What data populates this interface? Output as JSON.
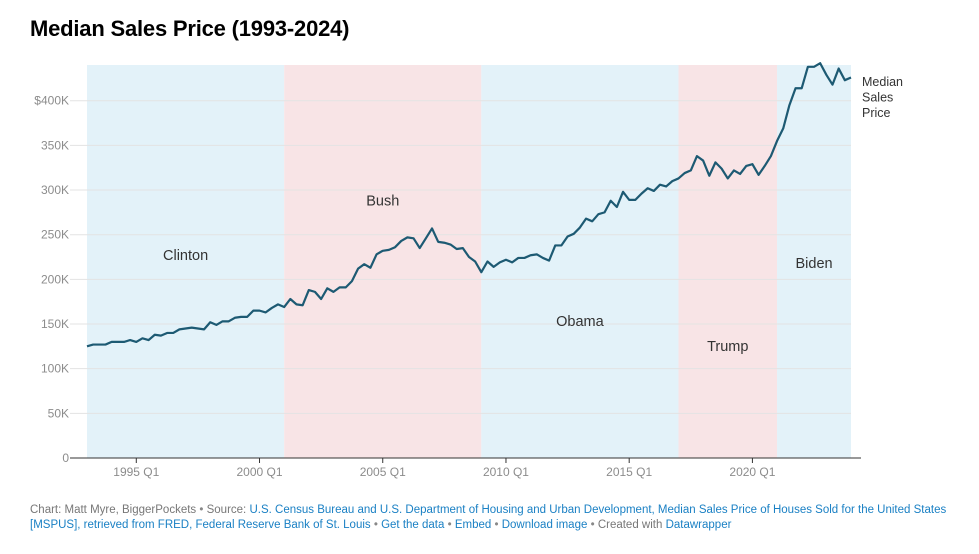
{
  "chart_data": {
    "type": "line",
    "title": "Median Sales Price (1993-2024)",
    "ylim": [
      0,
      440000
    ],
    "yticks": [
      {
        "value": 0,
        "label": "0"
      },
      {
        "value": 50000,
        "label": "50K"
      },
      {
        "value": 100000,
        "label": "100K"
      },
      {
        "value": 150000,
        "label": "150K"
      },
      {
        "value": 200000,
        "label": "200K"
      },
      {
        "value": 250000,
        "label": "250K"
      },
      {
        "value": 300000,
        "label": "300K"
      },
      {
        "value": 350000,
        "label": "350K"
      },
      {
        "value": 400000,
        "label": "$400K"
      }
    ],
    "xlim": [
      1993.0,
      2024.0
    ],
    "xticks": [
      {
        "value": 1995.0,
        "label": "1995 Q1"
      },
      {
        "value": 2000.0,
        "label": "2000 Q1"
      },
      {
        "value": 2005.0,
        "label": "2005 Q1"
      },
      {
        "value": 2010.0,
        "label": "2010 Q1"
      },
      {
        "value": 2015.0,
        "label": "2015 Q1"
      },
      {
        "value": 2020.0,
        "label": "2020 Q1"
      }
    ],
    "grid": true,
    "bands": [
      {
        "label": "Clinton",
        "start": 1993.0,
        "end": 2001.0,
        "color": "#e3f2f9",
        "label_value": 226000
      },
      {
        "label": "Bush",
        "start": 2001.0,
        "end": 2009.0,
        "color": "#f8e4e6",
        "label_value": 287000
      },
      {
        "label": "Obama",
        "start": 2009.0,
        "end": 2017.0,
        "color": "#e3f2f9",
        "label_value": 152000
      },
      {
        "label": "Trump",
        "start": 2017.0,
        "end": 2021.0,
        "color": "#f8e4e6",
        "label_value": 124000
      },
      {
        "label": "Biden",
        "start": 2021.0,
        "end": 2024.0,
        "color": "#e3f2f9",
        "label_value": 217000
      }
    ],
    "series": [
      {
        "name": "Median Sales Price",
        "color": "#1d5a73",
        "x": [
          1993.0,
          1993.25,
          1993.5,
          1993.75,
          1994.0,
          1994.25,
          1994.5,
          1994.75,
          1995.0,
          1995.25,
          1995.5,
          1995.75,
          1996.0,
          1996.25,
          1996.5,
          1996.75,
          1997.0,
          1997.25,
          1997.5,
          1997.75,
          1998.0,
          1998.25,
          1998.5,
          1998.75,
          1999.0,
          1999.25,
          1999.5,
          1999.75,
          2000.0,
          2000.25,
          2000.5,
          2000.75,
          2001.0,
          2001.25,
          2001.5,
          2001.75,
          2002.0,
          2002.25,
          2002.5,
          2002.75,
          2003.0,
          2003.25,
          2003.5,
          2003.75,
          2004.0,
          2004.25,
          2004.5,
          2004.75,
          2005.0,
          2005.25,
          2005.5,
          2005.75,
          2006.0,
          2006.25,
          2006.5,
          2006.75,
          2007.0,
          2007.25,
          2007.5,
          2007.75,
          2008.0,
          2008.25,
          2008.5,
          2008.75,
          2009.0,
          2009.25,
          2009.5,
          2009.75,
          2010.0,
          2010.25,
          2010.5,
          2010.75,
          2011.0,
          2011.25,
          2011.5,
          2011.75,
          2012.0,
          2012.25,
          2012.5,
          2012.75,
          2013.0,
          2013.25,
          2013.5,
          2013.75,
          2014.0,
          2014.25,
          2014.5,
          2014.75,
          2015.0,
          2015.25,
          2015.5,
          2015.75,
          2016.0,
          2016.25,
          2016.5,
          2016.75,
          2017.0,
          2017.25,
          2017.5,
          2017.75,
          2018.0,
          2018.25,
          2018.5,
          2018.75,
          2019.0,
          2019.25,
          2019.5,
          2019.75,
          2020.0,
          2020.25,
          2020.5,
          2020.75,
          2021.0,
          2021.25,
          2021.5,
          2021.75,
          2022.0,
          2022.25,
          2022.5,
          2022.75,
          2023.0,
          2023.25,
          2023.5,
          2023.75,
          2024.0
        ],
        "values": [
          125000,
          127000,
          127000,
          127000,
          130000,
          130000,
          130000,
          132000,
          130000,
          134000,
          132000,
          138000,
          137000,
          140000,
          140000,
          144000,
          145000,
          146000,
          145000,
          144000,
          152000,
          149000,
          153000,
          153000,
          157000,
          158000,
          158000,
          165000,
          165000,
          163000,
          168000,
          172000,
          169000,
          178000,
          172000,
          171000,
          188000,
          186000,
          178000,
          190000,
          186000,
          191000,
          191000,
          198000,
          212000,
          217000,
          213000,
          228000,
          232000,
          233000,
          236000,
          243000,
          247000,
          246000,
          235000,
          246000,
          257000,
          242000,
          241000,
          239000,
          234000,
          235000,
          225000,
          220000,
          208000,
          220000,
          214000,
          219000,
          222000,
          219000,
          224000,
          224000,
          227000,
          228000,
          224000,
          221000,
          238000,
          238000,
          248000,
          251000,
          258000,
          268000,
          265000,
          273000,
          275000,
          288000,
          281000,
          298000,
          289000,
          289000,
          296000,
          302000,
          299000,
          306000,
          304000,
          310000,
          313000,
          319000,
          322000,
          338000,
          333000,
          316000,
          331000,
          324000,
          313000,
          322000,
          318000,
          327000,
          329000,
          317000,
          327000,
          338000,
          355000,
          369000,
          395000,
          414000,
          414000,
          438000,
          438000,
          442000,
          429000,
          418000,
          436000,
          423000,
          426000
        ]
      }
    ]
  },
  "footer": {
    "chart_by": "Chart: Matt Myre, BiggerPockets",
    "source_prefix": "Source:",
    "source_link": "U.S. Census Bureau and U.S. Department of Housing and Urban Development, Median Sales Price of Houses Sold for the United States [MSPUS], retrieved from FRED, Federal Reserve Bank of St. Louis",
    "get_data": "Get the data",
    "embed": "Embed",
    "download": "Download image",
    "created_with": "Created with",
    "tool": "Datawrapper"
  }
}
